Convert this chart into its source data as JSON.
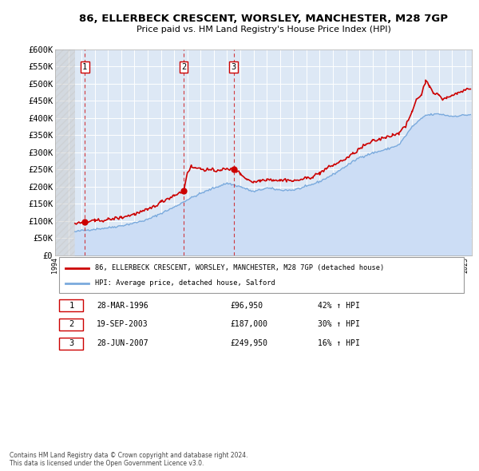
{
  "title": "86, ELLERBECK CRESCENT, WORSLEY, MANCHESTER, M28 7GP",
  "subtitle": "Price paid vs. HM Land Registry's House Price Index (HPI)",
  "xlim": [
    1994.0,
    2025.5
  ],
  "ylim": [
    0,
    600000
  ],
  "yticks": [
    0,
    50000,
    100000,
    150000,
    200000,
    250000,
    300000,
    350000,
    400000,
    450000,
    500000,
    550000,
    600000
  ],
  "ytick_labels": [
    "£0",
    "£50K",
    "£100K",
    "£150K",
    "£200K",
    "£250K",
    "£300K",
    "£350K",
    "£400K",
    "£450K",
    "£500K",
    "£550K",
    "£600K"
  ],
  "xticks": [
    1994,
    1995,
    1996,
    1997,
    1998,
    1999,
    2000,
    2001,
    2002,
    2003,
    2004,
    2005,
    2006,
    2007,
    2008,
    2009,
    2010,
    2011,
    2012,
    2013,
    2014,
    2015,
    2016,
    2017,
    2018,
    2019,
    2020,
    2021,
    2022,
    2023,
    2024,
    2025
  ],
  "property_color": "#cc0000",
  "hpi_color": "#7aaadd",
  "hpi_fill_color": "#ccddf5",
  "plot_bg_color": "#dde8f5",
  "hatch_color": "#cccccc",
  "grid_color": "#ffffff",
  "sale_points": [
    {
      "year": 1996.24,
      "price": 96950,
      "label": "1"
    },
    {
      "year": 2003.72,
      "price": 187000,
      "label": "2"
    },
    {
      "year": 2007.49,
      "price": 249950,
      "label": "3"
    }
  ],
  "vlines": [
    {
      "year": 1996.24,
      "label": "1"
    },
    {
      "year": 2003.72,
      "label": "2"
    },
    {
      "year": 2007.49,
      "label": "3"
    }
  ],
  "data_start_year": 1995.5,
  "legend_property": "86, ELLERBECK CRESCENT, WORSLEY, MANCHESTER, M28 7GP (detached house)",
  "legend_hpi": "HPI: Average price, detached house, Salford",
  "table_rows": [
    {
      "num": "1",
      "date": "28-MAR-1996",
      "price": "£96,950",
      "change": "42% ↑ HPI"
    },
    {
      "num": "2",
      "date": "19-SEP-2003",
      "price": "£187,000",
      "change": "30% ↑ HPI"
    },
    {
      "num": "3",
      "date": "28-JUN-2007",
      "price": "£249,950",
      "change": "16% ↑ HPI"
    }
  ],
  "footnote1": "Contains HM Land Registry data © Crown copyright and database right 2024.",
  "footnote2": "This data is licensed under the Open Government Licence v3.0."
}
